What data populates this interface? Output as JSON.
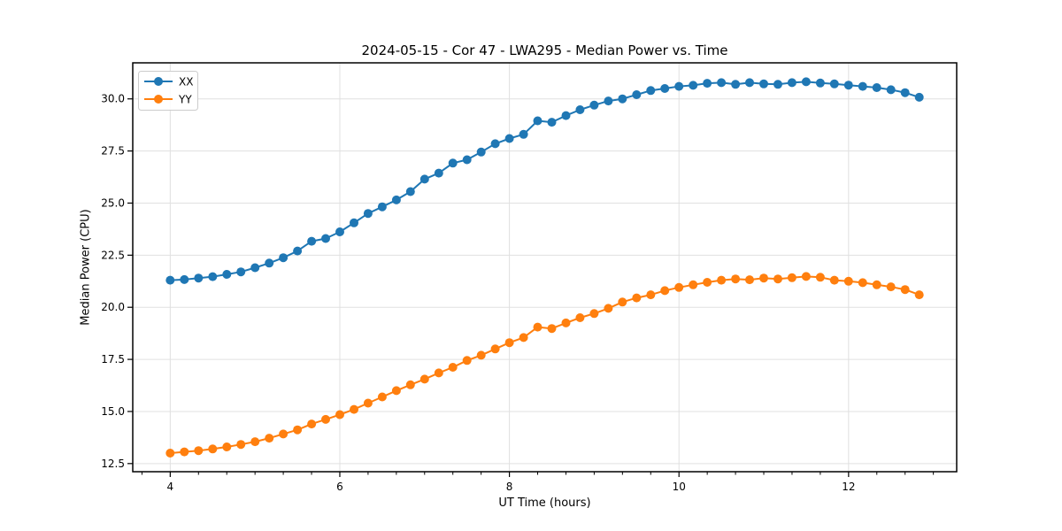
{
  "chart_data": {
    "type": "line",
    "title": "2024-05-15 - Cor 47 - LWA295 - Median Power vs. Time",
    "xlabel": "UT Time (hours)",
    "ylabel": "Median Power (CPU)",
    "xlim": [
      3.558,
      13.275
    ],
    "ylim": [
      12.11,
      31.73
    ],
    "xticks": [
      4,
      6,
      8,
      10,
      12
    ],
    "yticks": [
      12.5,
      15.0,
      17.5,
      20.0,
      22.5,
      25.0,
      27.5,
      30.0
    ],
    "minor_xtick_step": 0.33333,
    "grid": true,
    "grid_color": "#e0e0e0",
    "legend_position": "upper left",
    "x": [
      4.0,
      4.167,
      4.333,
      4.5,
      4.667,
      4.833,
      5.0,
      5.167,
      5.333,
      5.5,
      5.667,
      5.833,
      6.0,
      6.167,
      6.333,
      6.5,
      6.667,
      6.833,
      7.0,
      7.167,
      7.333,
      7.5,
      7.667,
      7.833,
      8.0,
      8.167,
      8.333,
      8.5,
      8.667,
      8.833,
      9.0,
      9.167,
      9.333,
      9.5,
      9.667,
      9.833,
      10.0,
      10.167,
      10.333,
      10.5,
      10.667,
      10.833,
      11.0,
      11.167,
      11.333,
      11.5,
      11.667,
      11.833,
      12.0,
      12.167,
      12.333,
      12.5,
      12.667,
      12.833
    ],
    "series": [
      {
        "name": "XX",
        "color": "#1f77b4",
        "values": [
          21.3,
          21.33,
          21.4,
          21.47,
          21.58,
          21.7,
          21.9,
          22.12,
          22.38,
          22.7,
          23.17,
          23.3,
          23.62,
          24.05,
          24.5,
          24.82,
          25.15,
          25.55,
          26.15,
          26.44,
          26.92,
          27.08,
          27.45,
          27.85,
          28.1,
          28.3,
          28.95,
          28.88,
          29.2,
          29.48,
          29.7,
          29.9,
          30.0,
          30.2,
          30.4,
          30.5,
          30.6,
          30.65,
          30.75,
          30.78,
          30.7,
          30.78,
          30.72,
          30.7,
          30.78,
          30.82,
          30.76,
          30.72,
          30.66,
          30.6,
          30.54,
          30.44,
          30.3,
          30.08
        ]
      },
      {
        "name": "YY",
        "color": "#ff7f0e",
        "values": [
          13.0,
          13.06,
          13.12,
          13.2,
          13.3,
          13.42,
          13.55,
          13.72,
          13.92,
          14.12,
          14.4,
          14.62,
          14.85,
          15.1,
          15.4,
          15.7,
          16.0,
          16.28,
          16.55,
          16.85,
          17.12,
          17.45,
          17.7,
          18.0,
          18.3,
          18.55,
          19.05,
          18.98,
          19.25,
          19.5,
          19.7,
          19.95,
          20.25,
          20.45,
          20.6,
          20.8,
          20.95,
          21.08,
          21.2,
          21.3,
          21.36,
          21.32,
          21.4,
          21.36,
          21.42,
          21.48,
          21.44,
          21.3,
          21.25,
          21.18,
          21.08,
          20.98,
          20.85,
          20.6
        ]
      }
    ]
  }
}
